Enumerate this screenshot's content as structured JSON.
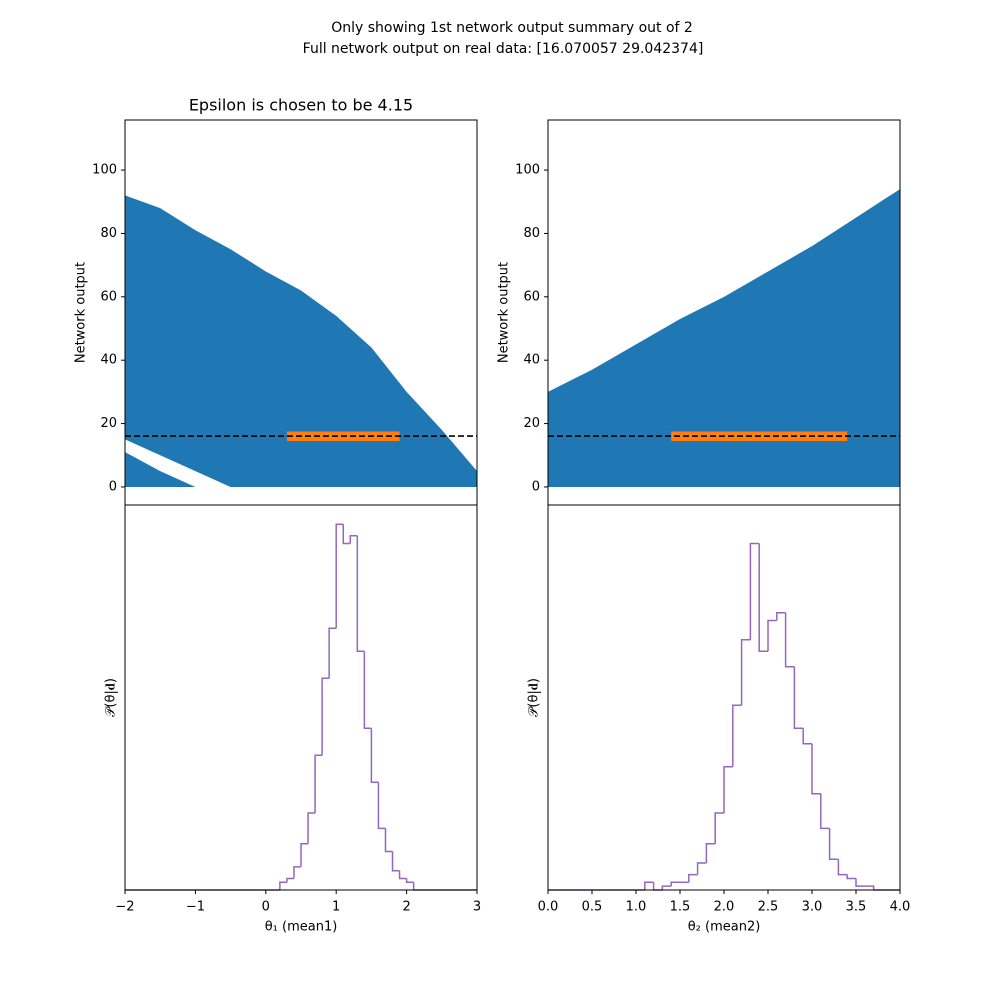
{
  "figure": {
    "title_lines": [
      "Only showing 1st network output summary out of 2",
      "Full network output on real data: [16.070057 29.042374]"
    ]
  },
  "chart_data": [
    {
      "type": "area",
      "title": "Epsilon is chosen to be 4.15",
      "ylabel": "Network output",
      "xlim": [
        -2,
        3
      ],
      "ylim": [
        -5.7,
        115.8
      ],
      "yticks": [
        0,
        20,
        40,
        60,
        80,
        100
      ],
      "series": [
        {
          "color": "#1f77b4",
          "x": [
            -2,
            -1.5,
            -1,
            -0.5,
            0,
            0.5,
            1,
            1.5,
            2,
            2.5,
            3
          ],
          "values": [
            92,
            88,
            81,
            75,
            68,
            62,
            54,
            44,
            30,
            18,
            5
          ],
          "lower": [
            15,
            10,
            5,
            0,
            0,
            0,
            0,
            0,
            0,
            0,
            0
          ]
        },
        {
          "color": "#1f77b4",
          "x": [
            -2,
            -1.5,
            -1
          ],
          "values": [
            11,
            5,
            0
          ],
          "lower": [
            0,
            0,
            0
          ]
        },
        {
          "color": "#ff7f0e",
          "x": [
            0.3,
            1.9
          ],
          "values": [
            17.5,
            17.5
          ],
          "lower": [
            14.5,
            14.5
          ]
        }
      ],
      "hline": 16.070057,
      "hline_color": "#000000"
    },
    {
      "type": "area",
      "ylabel": "Network output",
      "xlim": [
        0,
        4
      ],
      "ylim": [
        -5.7,
        115.8
      ],
      "yticks": [
        0,
        20,
        40,
        60,
        80,
        100
      ],
      "series": [
        {
          "color": "#1f77b4",
          "x": [
            0,
            0.5,
            1,
            1.5,
            2,
            2.5,
            3,
            3.5,
            4
          ],
          "values": [
            30,
            37,
            45,
            53,
            60,
            68,
            76,
            85,
            94
          ],
          "lower": [
            0,
            0,
            0,
            0,
            0,
            0,
            0,
            0,
            0
          ]
        },
        {
          "color": "#ff7f0e",
          "x": [
            1.4,
            3.4
          ],
          "values": [
            17.5,
            17.5
          ],
          "lower": [
            14.5,
            14.5
          ]
        }
      ],
      "hline": 16.070057,
      "hline_color": "#000000"
    },
    {
      "type": "histogram",
      "ylabel": "𝒫(θ|𝐝)",
      "xlabel": "θ₁ (mean1)",
      "color": "#9467bd",
      "xlim": [
        -2,
        3
      ],
      "ylim": [
        0,
        100
      ],
      "xticks": [
        {
          "value": -2,
          "label": "−2"
        },
        {
          "value": -1,
          "label": "−1"
        },
        0,
        1,
        2,
        3
      ],
      "bins": [
        0.2,
        0.3,
        0.4,
        0.5,
        0.6,
        0.7,
        0.8,
        0.9,
        1.0,
        1.1,
        1.2,
        1.3,
        1.4,
        1.5,
        1.6,
        1.7,
        1.8,
        1.9,
        2.0,
        2.1,
        2.2
      ],
      "counts": [
        2,
        3,
        6,
        12,
        20,
        35,
        55,
        68,
        95,
        90,
        92,
        62,
        42,
        28,
        16,
        10,
        5,
        3,
        2,
        0
      ]
    },
    {
      "type": "histogram",
      "ylabel": "𝒫(θ|𝐝)",
      "xlabel": "θ₂ (mean2)",
      "color": "#9467bd",
      "xlim": [
        0,
        4
      ],
      "ylim": [
        0,
        100
      ],
      "xticks": [
        {
          "value": 0,
          "label": "0.0"
        },
        {
          "value": 0.5,
          "label": "0.5"
        },
        {
          "value": 1,
          "label": "1.0"
        },
        {
          "value": 1.5,
          "label": "1.5"
        },
        {
          "value": 2,
          "label": "2.0"
        },
        {
          "value": 2.5,
          "label": "2.5"
        },
        {
          "value": 3,
          "label": "3.0"
        },
        {
          "value": 3.5,
          "label": "3.5"
        },
        {
          "value": 4,
          "label": "4.0"
        }
      ],
      "bins": [
        1.1,
        1.2,
        1.3,
        1.4,
        1.5,
        1.6,
        1.7,
        1.8,
        1.9,
        2.0,
        2.1,
        2.2,
        2.3,
        2.4,
        2.5,
        2.6,
        2.7,
        2.8,
        2.9,
        3.0,
        3.1,
        3.2,
        3.3,
        3.4,
        3.5,
        3.6,
        3.7
      ],
      "counts": [
        2,
        0,
        1,
        2,
        2,
        4,
        7,
        12,
        20,
        32,
        48,
        65,
        90,
        62,
        70,
        72,
        58,
        42,
        38,
        25,
        16,
        8,
        4,
        3,
        1,
        1
      ]
    }
  ]
}
